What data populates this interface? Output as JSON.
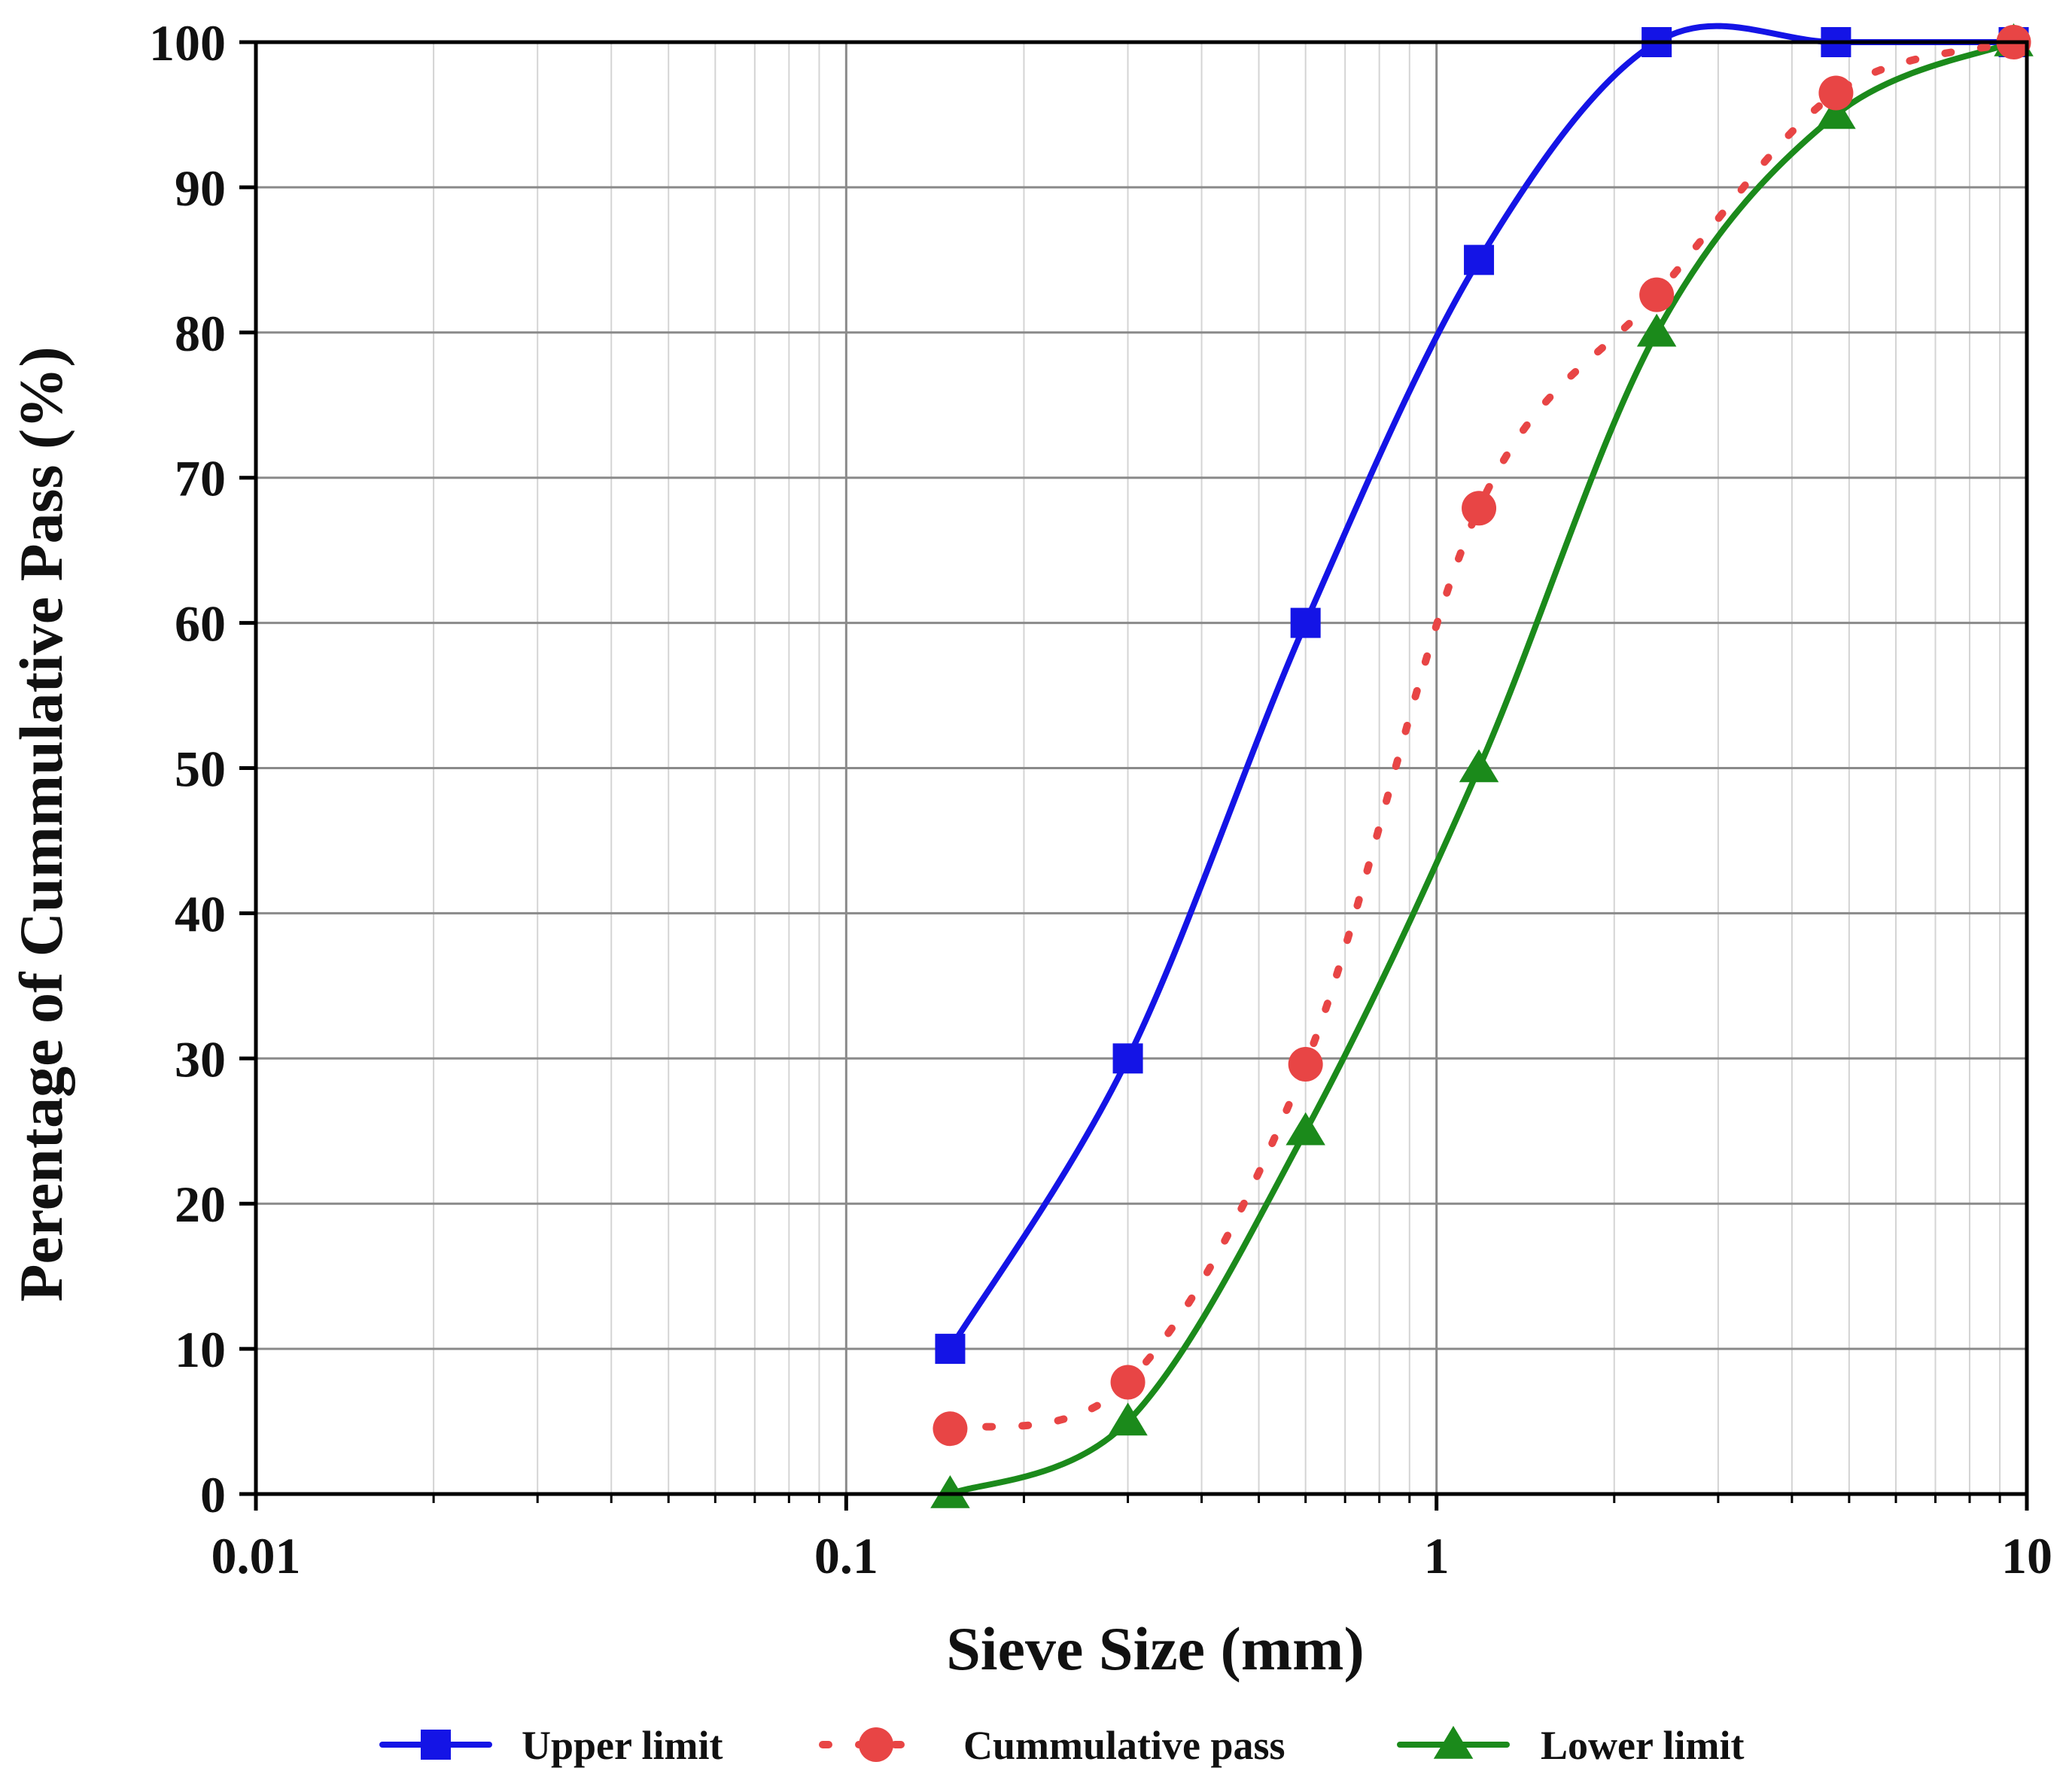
{
  "chart_data": {
    "type": "line",
    "title": "",
    "xlabel": "Sieve Size (mm)",
    "ylabel": "Perentage of Cummulative Pass (%)",
    "xscale": "log",
    "xlim": [
      0.01,
      10
    ],
    "ylim": [
      0,
      100
    ],
    "grid": true,
    "legend_position": "bottom",
    "x_ticks": [
      {
        "value": 0.01,
        "label": "0.01"
      },
      {
        "value": 0.1,
        "label": "0.1"
      },
      {
        "value": 1,
        "label": "1"
      },
      {
        "value": 10,
        "label": "10"
      }
    ],
    "y_ticks": [
      {
        "value": 0,
        "label": "0"
      },
      {
        "value": 10,
        "label": "10"
      },
      {
        "value": 20,
        "label": "20"
      },
      {
        "value": 30,
        "label": "30"
      },
      {
        "value": 40,
        "label": "40"
      },
      {
        "value": 50,
        "label": "50"
      },
      {
        "value": 60,
        "label": "60"
      },
      {
        "value": 70,
        "label": "70"
      },
      {
        "value": 80,
        "label": "80"
      },
      {
        "value": 90,
        "label": "90"
      },
      {
        "value": 100,
        "label": "100"
      }
    ],
    "x": [
      0.15,
      0.3,
      0.6,
      1.18,
      2.36,
      4.75,
      9.5
    ],
    "series": [
      {
        "name": "Upper limit",
        "values": [
          10,
          30,
          60,
          85,
          100,
          100,
          100
        ],
        "color": "#1414e6",
        "marker": "square",
        "line_style": "solid"
      },
      {
        "name": "Cummulative pass",
        "values": [
          4.5,
          7.7,
          29.6,
          67.9,
          82.6,
          96.5,
          100
        ],
        "color": "#e84545",
        "marker": "circle",
        "line_style": "dotted"
      },
      {
        "name": "Lower limit",
        "values": [
          0,
          5,
          25,
          50,
          80,
          95,
          100
        ],
        "color": "#1b8a1b",
        "marker": "triangle",
        "line_style": "solid"
      }
    ]
  }
}
